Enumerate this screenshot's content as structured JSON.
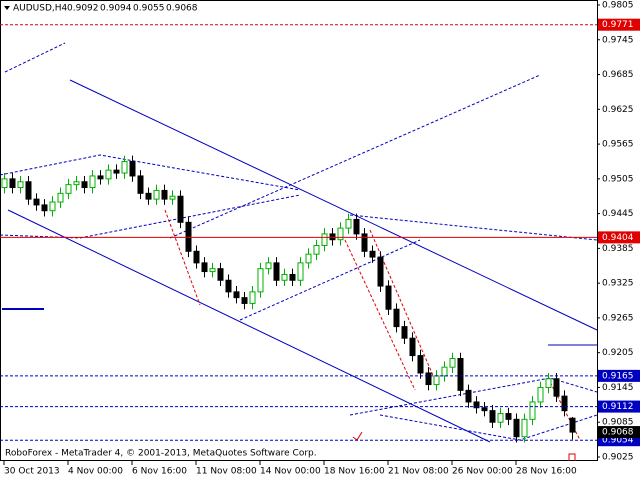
{
  "chart_data": {
    "type": "candlestick",
    "title": "AUDUSD,H4",
    "annotation": "RoboForex - MetaTrader 4, © 2001-2013, MetaQuotes Software Corp.",
    "categories": [
      "30 Oct 2013",
      null,
      null,
      null,
      null,
      null,
      null,
      null,
      "4 Nov 00:00",
      null,
      null,
      null,
      null,
      null,
      null,
      null,
      "6 Nov 16:00",
      null,
      null,
      null,
      null,
      null,
      null,
      null,
      "11 Nov 08:00",
      null,
      null,
      null,
      null,
      null,
      null,
      null,
      "14 Nov 00:00",
      null,
      null,
      null,
      null,
      null,
      null,
      null,
      "18 Nov 16:00",
      null,
      null,
      null,
      null,
      null,
      null,
      null,
      "21 Nov 08:00",
      null,
      null,
      null,
      null,
      null,
      null,
      null,
      "26 Nov 00:00",
      null,
      null,
      null,
      null,
      null,
      null,
      null,
      "28 Nov 16:00",
      null,
      null,
      null,
      null,
      null,
      null,
      null
    ],
    "open": [
      0.949,
      0.9505,
      0.949,
      0.95,
      0.947,
      0.946,
      0.945,
      0.9465,
      0.948,
      0.9495,
      0.95,
      0.949,
      0.951,
      0.9505,
      0.952,
      0.9515,
      0.9535,
      0.951,
      0.948,
      0.947,
      0.9485,
      0.947,
      0.9475,
      0.943,
      0.938,
      0.936,
      0.9345,
      0.935,
      0.933,
      0.931,
      0.93,
      0.929,
      0.931,
      0.935,
      0.936,
      0.933,
      0.934,
      0.933,
      0.936,
      0.9375,
      0.939,
      0.941,
      0.94,
      0.942,
      0.9435,
      0.941,
      0.938,
      0.937,
      0.932,
      0.928,
      0.925,
      0.923,
      0.92,
      0.917,
      0.915,
      0.9165,
      0.918,
      0.9195,
      0.914,
      0.912,
      0.911,
      0.9105,
      0.9085,
      0.91,
      0.909,
      0.906,
      0.909,
      0.912,
      0.9145,
      0.916,
      0.913,
      0.9092
    ],
    "high": [
      0.9515,
      0.9515,
      0.951,
      0.951,
      0.948,
      0.947,
      0.9475,
      0.949,
      0.9505,
      0.951,
      0.951,
      0.952,
      0.952,
      0.953,
      0.953,
      0.9545,
      0.9545,
      0.952,
      0.949,
      0.9495,
      0.9495,
      0.9485,
      0.9485,
      0.944,
      0.939,
      0.937,
      0.936,
      0.936,
      0.934,
      0.932,
      0.931,
      0.932,
      0.936,
      0.937,
      0.937,
      0.935,
      0.935,
      0.937,
      0.9385,
      0.94,
      0.942,
      0.942,
      0.943,
      0.9445,
      0.9445,
      0.942,
      0.939,
      0.938,
      0.933,
      0.929,
      0.926,
      0.924,
      0.921,
      0.918,
      0.9175,
      0.919,
      0.9205,
      0.9205,
      0.915,
      0.913,
      0.912,
      0.9115,
      0.911,
      0.911,
      0.91,
      0.91,
      0.913,
      0.9155,
      0.917,
      0.917,
      0.914,
      0.9094
    ],
    "low": [
      0.948,
      0.948,
      0.948,
      0.946,
      0.945,
      0.944,
      0.944,
      0.9455,
      0.947,
      0.9485,
      0.948,
      0.948,
      0.9495,
      0.9495,
      0.9505,
      0.9505,
      0.95,
      0.947,
      0.946,
      0.946,
      0.946,
      0.946,
      0.942,
      0.937,
      0.935,
      0.9335,
      0.9335,
      0.932,
      0.93,
      0.929,
      0.928,
      0.928,
      0.93,
      0.934,
      0.932,
      0.932,
      0.932,
      0.932,
      0.935,
      0.9365,
      0.938,
      0.939,
      0.939,
      0.941,
      0.94,
      0.937,
      0.936,
      0.931,
      0.927,
      0.924,
      0.922,
      0.919,
      0.916,
      0.914,
      0.914,
      0.9155,
      0.917,
      0.913,
      0.911,
      0.91,
      0.9095,
      0.9075,
      0.9075,
      0.908,
      0.905,
      0.905,
      0.908,
      0.911,
      0.9135,
      0.912,
      0.9095,
      0.9055
    ],
    "close": [
      0.9505,
      0.949,
      0.95,
      0.947,
      0.946,
      0.945,
      0.9465,
      0.948,
      0.9495,
      0.95,
      0.949,
      0.951,
      0.9505,
      0.952,
      0.9515,
      0.9535,
      0.951,
      0.948,
      0.947,
      0.9485,
      0.947,
      0.9475,
      0.943,
      0.938,
      0.936,
      0.9345,
      0.935,
      0.933,
      0.931,
      0.93,
      0.929,
      0.931,
      0.935,
      0.936,
      0.933,
      0.934,
      0.933,
      0.936,
      0.9375,
      0.939,
      0.941,
      0.94,
      0.942,
      0.9435,
      0.941,
      0.938,
      0.937,
      0.932,
      0.928,
      0.925,
      0.923,
      0.92,
      0.917,
      0.915,
      0.9165,
      0.918,
      0.9195,
      0.914,
      0.912,
      0.911,
      0.9105,
      0.9085,
      0.91,
      0.909,
      0.906,
      0.909,
      0.912,
      0.9145,
      0.916,
      0.913,
      0.9105,
      0.9068
    ],
    "up_color": "#00b000",
    "down_color": "#000000",
    "ylim": [
      0.9025,
      0.9805
    ],
    "yticks": [
      0.9805,
      0.9745,
      0.9685,
      0.9625,
      0.9565,
      0.9505,
      0.9445,
      0.9385,
      0.9325,
      0.9265,
      0.9205,
      0.9145,
      0.9085,
      0.9025
    ],
    "levels": [
      {
        "value": 0.9771,
        "color": "#e00000",
        "line": "dashed"
      },
      {
        "value": 0.9404,
        "color": "#e00000",
        "line": "solid"
      },
      {
        "value": 0.9165,
        "color": "#0000c0",
        "line": "dashed"
      },
      {
        "value": 0.9112,
        "color": "#0000c0",
        "line": "dashed"
      },
      {
        "value": 0.9054,
        "color": "#0000c0",
        "line": "dashed"
      }
    ]
  }
}
